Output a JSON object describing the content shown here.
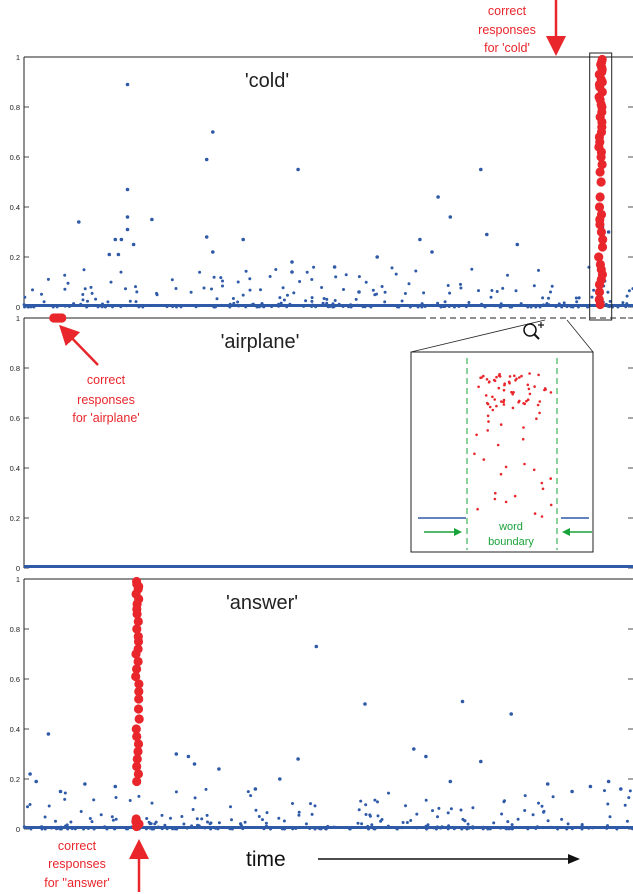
{
  "figure": {
    "time_label": "time",
    "inset_label_line1": "word",
    "inset_label_line2": "boundary"
  },
  "colors": {
    "noise": "#2f5aa8",
    "correct": "#e8262b",
    "boundary": "#1aa33a",
    "axis": "#222222"
  },
  "icons": {
    "inset_zoom": "magnifier-plus-icon"
  },
  "chart_data": [
    {
      "type": "scatter",
      "word": "'cold'",
      "title": "'cold'",
      "ylim": [
        0,
        1
      ],
      "yticks": [
        0,
        0.2,
        0.4,
        0.6,
        0.8,
        1
      ],
      "tick_labels": [
        "0",
        "0.2",
        "0.4",
        "0.6",
        "0.8",
        "1"
      ],
      "annotation": [
        "correct",
        "responses",
        "for 'cold'"
      ],
      "correct_x": 0.947,
      "correct_y": [
        0.99,
        0.98,
        0.97,
        0.96,
        0.95,
        0.94,
        0.93,
        0.91,
        0.9,
        0.89,
        0.88,
        0.86,
        0.84,
        0.83,
        0.81,
        0.8,
        0.78,
        0.76,
        0.74,
        0.72,
        0.7,
        0.68,
        0.66,
        0.64,
        0.62,
        0.6,
        0.57,
        0.54,
        0.5,
        0.44,
        0.4,
        0.37,
        0.35,
        0.33,
        0.3,
        0.27,
        0.24,
        0.2,
        0.17,
        0.15,
        0.13,
        0.11,
        0.09,
        0.06,
        0.03,
        0.01
      ],
      "noise_points": [
        [
          0.09,
          0.34
        ],
        [
          0.14,
          0.21
        ],
        [
          0.15,
          0.27
        ],
        [
          0.16,
          0.27
        ],
        [
          0.155,
          0.21
        ],
        [
          0.17,
          0.89
        ],
        [
          0.17,
          0.47
        ],
        [
          0.17,
          0.36
        ],
        [
          0.17,
          0.31
        ],
        [
          0.18,
          0.25
        ],
        [
          0.21,
          0.35
        ],
        [
          0.3,
          0.59
        ],
        [
          0.31,
          0.7
        ],
        [
          0.3,
          0.28
        ],
        [
          0.31,
          0.22
        ],
        [
          0.36,
          0.27
        ],
        [
          0.45,
          0.55
        ],
        [
          0.44,
          0.18
        ],
        [
          0.44,
          0.14
        ],
        [
          0.68,
          0.44
        ],
        [
          0.7,
          0.36
        ],
        [
          0.75,
          0.55
        ],
        [
          0.76,
          0.29
        ],
        [
          0.81,
          0.25
        ],
        [
          0.51,
          0.16
        ],
        [
          0.55,
          0.06
        ],
        [
          0.58,
          0.2
        ],
        [
          0.95,
          0.32
        ],
        [
          0.96,
          0.3
        ],
        [
          0.65,
          0.27
        ],
        [
          0.67,
          0.22
        ]
      ]
    },
    {
      "type": "scatter",
      "word": "'airplane'",
      "title": "'airplane'",
      "ylim": [
        0,
        1
      ],
      "yticks": [
        0,
        0.2,
        0.4,
        0.6,
        0.8,
        1
      ],
      "tick_labels": [
        "0",
        "0.2",
        "0.4",
        "0.6",
        "0.8",
        "1"
      ],
      "annotation": [
        "correct",
        "responses",
        "for 'airplane'"
      ],
      "correct_band": [
        0.049,
        0.064
      ],
      "correct_y": 1,
      "noise_points": []
    },
    {
      "type": "scatter",
      "word": "'answer'",
      "title": "'answer'",
      "ylim": [
        0,
        1
      ],
      "yticks": [
        0,
        0.2,
        0.4,
        0.6,
        0.8,
        1
      ],
      "tick_labels": [
        "0",
        "0.2",
        "0.4",
        "0.6",
        "0.8",
        "1"
      ],
      "annotation": [
        "correct",
        "responses",
        "for ''answer'"
      ],
      "correct_x": 0.186,
      "correct_y": [
        0.99,
        0.98,
        0.97,
        0.96,
        0.94,
        0.92,
        0.9,
        0.88,
        0.86,
        0.83,
        0.8,
        0.77,
        0.75,
        0.72,
        0.7,
        0.67,
        0.64,
        0.61,
        0.58,
        0.55,
        0.52,
        0.48,
        0.44,
        0.4,
        0.37,
        0.34,
        0.31,
        0.28,
        0.25,
        0.22,
        0.19,
        0.04,
        0.03,
        0.02,
        0.01
      ],
      "noise_points": [
        [
          0.01,
          0.22
        ],
        [
          0.02,
          0.19
        ],
        [
          0.04,
          0.38
        ],
        [
          0.06,
          0.15
        ],
        [
          0.1,
          0.18
        ],
        [
          0.15,
          0.17
        ],
        [
          0.25,
          0.3
        ],
        [
          0.27,
          0.29
        ],
        [
          0.28,
          0.26
        ],
        [
          0.32,
          0.24
        ],
        [
          0.38,
          0.16
        ],
        [
          0.42,
          0.2
        ],
        [
          0.45,
          0.28
        ],
        [
          0.48,
          0.73
        ],
        [
          0.56,
          0.5
        ],
        [
          0.64,
          0.32
        ],
        [
          0.66,
          0.29
        ],
        [
          0.7,
          0.19
        ],
        [
          0.72,
          0.51
        ],
        [
          0.75,
          0.27
        ],
        [
          0.8,
          0.46
        ],
        [
          0.86,
          0.18
        ],
        [
          0.9,
          0.15
        ],
        [
          0.93,
          0.17
        ],
        [
          0.96,
          0.19
        ],
        [
          0.98,
          0.16
        ]
      ]
    }
  ]
}
